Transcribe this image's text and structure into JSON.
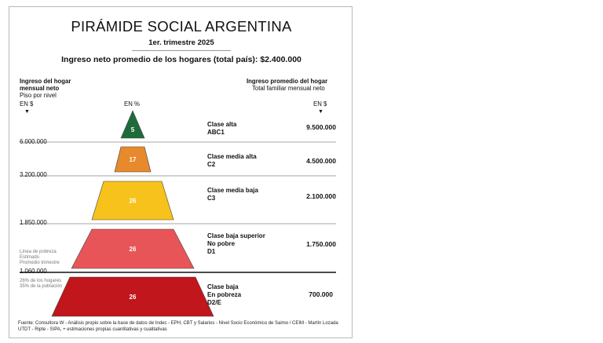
{
  "header": {
    "title": "PIRÁMIDE SOCIAL ARGENTINA",
    "subtitle": "1er. trimestre 2025",
    "headline": "Ingreso neto promedio de los hogares (total país): $2.400.000"
  },
  "left_header": {
    "line1": "Ingreso del hogar",
    "line2": "mensual neto",
    "line3": "Piso por nivel",
    "unit": "EN $",
    "arrow": "▼"
  },
  "center_header": {
    "unit": "EN %"
  },
  "right_header": {
    "line1": "Ingreso promedio del hogar",
    "line2": "Total familiar mensual neto",
    "unit": "EN $",
    "arrow": "▼"
  },
  "thresholds": [
    "6.000.000",
    "3.200.000",
    "1.850.000",
    "1.060.000"
  ],
  "poverty_note": {
    "l1": "Línea de pobreza",
    "l2": "Estimado",
    "l3": "Promedio trimestre"
  },
  "poverty_share": {
    "l1": "26% de los hogares",
    "l2": "35% de la población"
  },
  "chart_data": {
    "type": "bar",
    "categories": [
      "ABC1",
      "C2",
      "C3",
      "D1",
      "D2/E"
    ],
    "series": [
      {
        "name": "EN %",
        "values": [
          5,
          17,
          26,
          26,
          26
        ]
      }
    ],
    "levels": [
      {
        "label": "5",
        "class_l1": "Clase alta",
        "class_l2": "ABC1",
        "class_l3": "",
        "avg_income": "9.500.000",
        "color": "#1e6b3a"
      },
      {
        "label": "17",
        "class_l1": "Clase media alta",
        "class_l2": "C2",
        "class_l3": "",
        "avg_income": "4.500.000",
        "color": "#e8892c"
      },
      {
        "label": "26",
        "class_l1": "Clase media baja",
        "class_l2": "C3",
        "class_l3": "",
        "avg_income": "2.100.000",
        "color": "#f7c21b"
      },
      {
        "label": "26",
        "class_l1": "Clase baja superior",
        "class_l2": "No pobre",
        "class_l3": "D1",
        "avg_income": "1.750.000",
        "color": "#e85558"
      },
      {
        "label": "26",
        "class_l1": "Clase baja",
        "class_l2": "En pobreza",
        "class_l3": "D2/E",
        "avg_income": "700.000",
        "color": "#c0161c"
      }
    ]
  },
  "source": "Fuente: Consultora W - Análisis propio sobre la base de datos de Indec - EPH, CBT y Salarios - Nivel Socio Económico de Saimo / CEIM - Martín Lozada UTDT - Ripte - SIPA, + estimaciones propias cuantitativas y cualitativas"
}
